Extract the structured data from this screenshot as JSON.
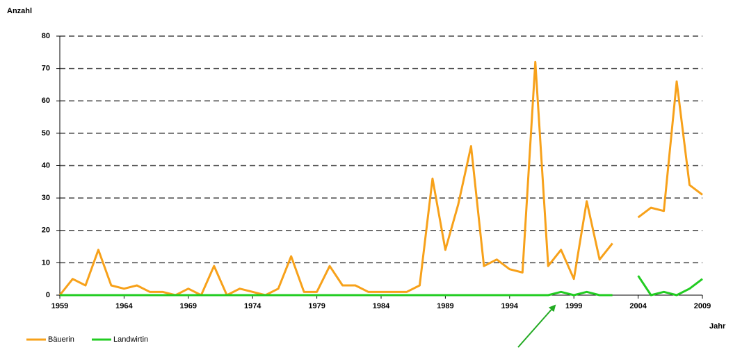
{
  "chart_data": {
    "type": "line",
    "y_label": "Anzahl",
    "x_label": "Jahr",
    "x": [
      1959,
      1960,
      1961,
      1962,
      1963,
      1964,
      1965,
      1966,
      1967,
      1968,
      1969,
      1970,
      1971,
      1972,
      1973,
      1974,
      1975,
      1976,
      1977,
      1978,
      1979,
      1980,
      1981,
      1982,
      1983,
      1984,
      1985,
      1986,
      1987,
      1988,
      1989,
      1990,
      1991,
      1992,
      1993,
      1994,
      1995,
      1996,
      1997,
      1998,
      1999,
      2000,
      2001,
      2002,
      2003,
      2004,
      2005,
      2006,
      2007,
      2008,
      2009
    ],
    "series": [
      {
        "name": "Bäuerin",
        "color": "#f7a11a",
        "values": [
          0,
          5,
          3,
          14,
          3,
          2,
          3,
          1,
          1,
          0,
          2,
          0,
          9,
          0,
          2,
          1,
          0,
          2,
          12,
          1,
          1,
          9,
          3,
          3,
          1,
          1,
          1,
          1,
          3,
          36,
          14,
          28,
          46,
          9,
          11,
          8,
          7,
          72,
          9,
          14,
          5,
          29,
          11,
          16,
          null,
          24,
          27,
          26,
          66,
          34,
          31
        ]
      },
      {
        "name": "Landwirtin",
        "color": "#22cc22",
        "values": [
          0,
          0,
          0,
          0,
          0,
          0,
          0,
          0,
          0,
          0,
          0,
          0,
          0,
          0,
          0,
          0,
          0,
          0,
          0,
          0,
          0,
          0,
          0,
          0,
          0,
          0,
          0,
          0,
          0,
          0,
          0,
          0,
          0,
          0,
          0,
          0,
          0,
          0,
          0,
          1,
          0,
          1,
          0,
          0,
          null,
          6,
          0,
          1,
          0,
          2,
          5
        ]
      }
    ],
    "xlim": [
      1959,
      2009
    ],
    "xticks": [
      1959,
      1964,
      1969,
      1974,
      1979,
      1984,
      1989,
      1994,
      1999,
      2004,
      2009
    ],
    "ylim": [
      0,
      80
    ],
    "yticks": [
      0,
      10,
      20,
      30,
      40,
      50,
      60,
      70,
      80
    ],
    "grid": true
  }
}
